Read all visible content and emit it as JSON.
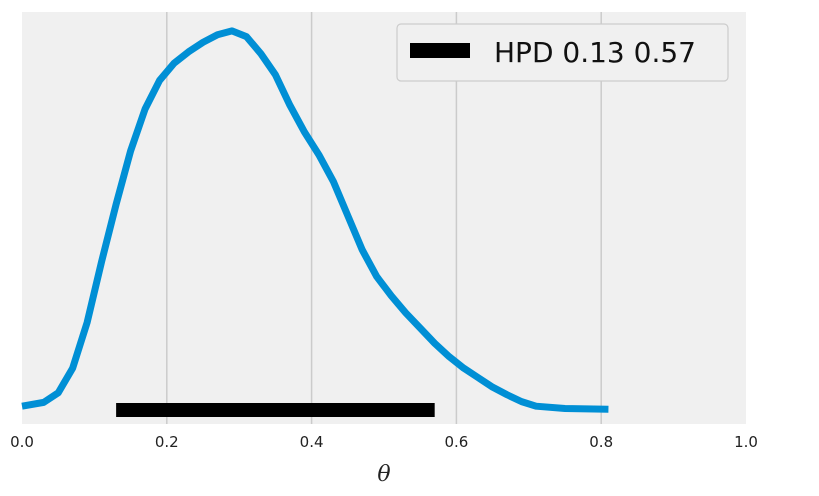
{
  "chart_data": {
    "type": "line",
    "xlabel": "θ",
    "xlim": [
      0.0,
      1.0
    ],
    "x_ticks": [
      0.0,
      0.2,
      0.4,
      0.6,
      0.8,
      1.0
    ],
    "x_tick_labels": [
      "0.0",
      "0.2",
      "0.4",
      "0.6",
      "0.8",
      "1.0"
    ],
    "grid": "vertical",
    "legend": {
      "placement": "top-right",
      "label": "HPD 0.13 0.57"
    },
    "series": [
      {
        "kind": "density",
        "color": "#008FD5",
        "x": [
          0.0,
          0.03,
          0.05,
          0.07,
          0.09,
          0.11,
          0.13,
          0.15,
          0.17,
          0.19,
          0.21,
          0.23,
          0.25,
          0.27,
          0.29,
          0.31,
          0.33,
          0.35,
          0.37,
          0.39,
          0.41,
          0.43,
          0.45,
          0.47,
          0.49,
          0.51,
          0.53,
          0.55,
          0.57,
          0.59,
          0.61,
          0.63,
          0.65,
          0.67,
          0.69,
          0.71,
          0.75,
          0.81
        ],
        "y": [
          0.01,
          0.02,
          0.045,
          0.11,
          0.23,
          0.39,
          0.54,
          0.68,
          0.79,
          0.865,
          0.91,
          0.94,
          0.965,
          0.985,
          0.995,
          0.98,
          0.935,
          0.88,
          0.8,
          0.73,
          0.67,
          0.6,
          0.51,
          0.42,
          0.35,
          0.3,
          0.255,
          0.215,
          0.175,
          0.14,
          0.11,
          0.085,
          0.06,
          0.04,
          0.022,
          0.01,
          0.004,
          0.002
        ]
      },
      {
        "kind": "hpd-interval",
        "color": "#000000",
        "x_start": 0.13,
        "x_end": 0.57,
        "y": 0.0
      }
    ]
  }
}
